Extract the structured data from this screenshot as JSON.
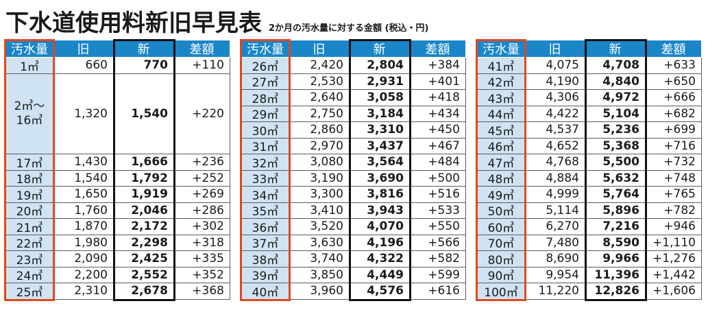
{
  "title": {
    "main": "下水道使用料新旧早見表",
    "sub": "2か月の汚水量に対する金額 (税込・円)"
  },
  "headers": {
    "volume": "汚水量",
    "old": "旧",
    "new": "新",
    "diff": "差額"
  },
  "colors": {
    "header": "#1a86c8",
    "volume_bg": "#cfe3f3",
    "red_frame": "#e2461f",
    "black_frame": "#111111"
  },
  "table1": {
    "first": {
      "volume": "1㎥",
      "old": "660",
      "new": "770",
      "diff": "+110"
    },
    "merged": {
      "volume": "2㎥〜\n16㎥",
      "old": "1,320",
      "new": "1,540",
      "diff": "+220"
    },
    "rows": [
      {
        "volume": "17㎥",
        "old": "1,430",
        "new": "1,666",
        "diff": "+236"
      },
      {
        "volume": "18㎥",
        "old": "1,540",
        "new": "1,792",
        "diff": "+252"
      },
      {
        "volume": "19㎥",
        "old": "1,650",
        "new": "1,919",
        "diff": "+269"
      },
      {
        "volume": "20㎥",
        "old": "1,760",
        "new": "2,046",
        "diff": "+286"
      },
      {
        "volume": "21㎥",
        "old": "1,870",
        "new": "2,172",
        "diff": "+302"
      },
      {
        "volume": "22㎥",
        "old": "1,980",
        "new": "2,298",
        "diff": "+318"
      },
      {
        "volume": "23㎥",
        "old": "2,090",
        "new": "2,425",
        "diff": "+335"
      },
      {
        "volume": "24㎥",
        "old": "2,200",
        "new": "2,552",
        "diff": "+352"
      },
      {
        "volume": "25㎥",
        "old": "2,310",
        "new": "2,678",
        "diff": "+368"
      }
    ]
  },
  "table2": {
    "rows": [
      {
        "volume": "26㎥",
        "old": "2,420",
        "new": "2,804",
        "diff": "+384"
      },
      {
        "volume": "27㎥",
        "old": "2,530",
        "new": "2,931",
        "diff": "+401"
      },
      {
        "volume": "28㎥",
        "old": "2,640",
        "new": "3,058",
        "diff": "+418"
      },
      {
        "volume": "29㎥",
        "old": "2,750",
        "new": "3,184",
        "diff": "+434"
      },
      {
        "volume": "30㎥",
        "old": "2,860",
        "new": "3,310",
        "diff": "+450"
      },
      {
        "volume": "31㎥",
        "old": "2,970",
        "new": "3,437",
        "diff": "+467"
      },
      {
        "volume": "32㎥",
        "old": "3,080",
        "new": "3,564",
        "diff": "+484"
      },
      {
        "volume": "33㎥",
        "old": "3,190",
        "new": "3,690",
        "diff": "+500"
      },
      {
        "volume": "34㎥",
        "old": "3,300",
        "new": "3,816",
        "diff": "+516"
      },
      {
        "volume": "35㎥",
        "old": "3,410",
        "new": "3,943",
        "diff": "+533"
      },
      {
        "volume": "36㎥",
        "old": "3,520",
        "new": "4,070",
        "diff": "+550"
      },
      {
        "volume": "37㎥",
        "old": "3,630",
        "new": "4,196",
        "diff": "+566"
      },
      {
        "volume": "38㎥",
        "old": "3,740",
        "new": "4,322",
        "diff": "+582"
      },
      {
        "volume": "39㎥",
        "old": "3,850",
        "new": "4,449",
        "diff": "+599"
      },
      {
        "volume": "40㎥",
        "old": "3,960",
        "new": "4,576",
        "diff": "+616"
      }
    ]
  },
  "table3": {
    "rows": [
      {
        "volume": "41㎥",
        "old": "4,075",
        "new": "4,708",
        "diff": "+633"
      },
      {
        "volume": "42㎥",
        "old": "4,190",
        "new": "4,840",
        "diff": "+650"
      },
      {
        "volume": "43㎥",
        "old": "4,306",
        "new": "4,972",
        "diff": "+666"
      },
      {
        "volume": "44㎥",
        "old": "4,422",
        "new": "5,104",
        "diff": "+682"
      },
      {
        "volume": "45㎥",
        "old": "4,537",
        "new": "5,236",
        "diff": "+699"
      },
      {
        "volume": "46㎥",
        "old": "4,652",
        "new": "5,368",
        "diff": "+716"
      },
      {
        "volume": "47㎥",
        "old": "4,768",
        "new": "5,500",
        "diff": "+732"
      },
      {
        "volume": "48㎥",
        "old": "4,884",
        "new": "5,632",
        "diff": "+748"
      },
      {
        "volume": "49㎥",
        "old": "4,999",
        "new": "5,764",
        "diff": "+765"
      },
      {
        "volume": "50㎥",
        "old": "5,114",
        "new": "5,896",
        "diff": "+782"
      },
      {
        "volume": "60㎥",
        "old": "6,270",
        "new": "7,216",
        "diff": "+946"
      },
      {
        "volume": "70㎥",
        "old": "7,480",
        "new": "8,590",
        "diff": "+1,110"
      },
      {
        "volume": "80㎥",
        "old": "8,690",
        "new": "9,966",
        "diff": "+1,276"
      },
      {
        "volume": "90㎥",
        "old": "9,954",
        "new": "11,396",
        "diff": "+1,442"
      },
      {
        "volume": "100㎥",
        "old": "11,220",
        "new": "12,826",
        "diff": "+1,606"
      }
    ]
  }
}
